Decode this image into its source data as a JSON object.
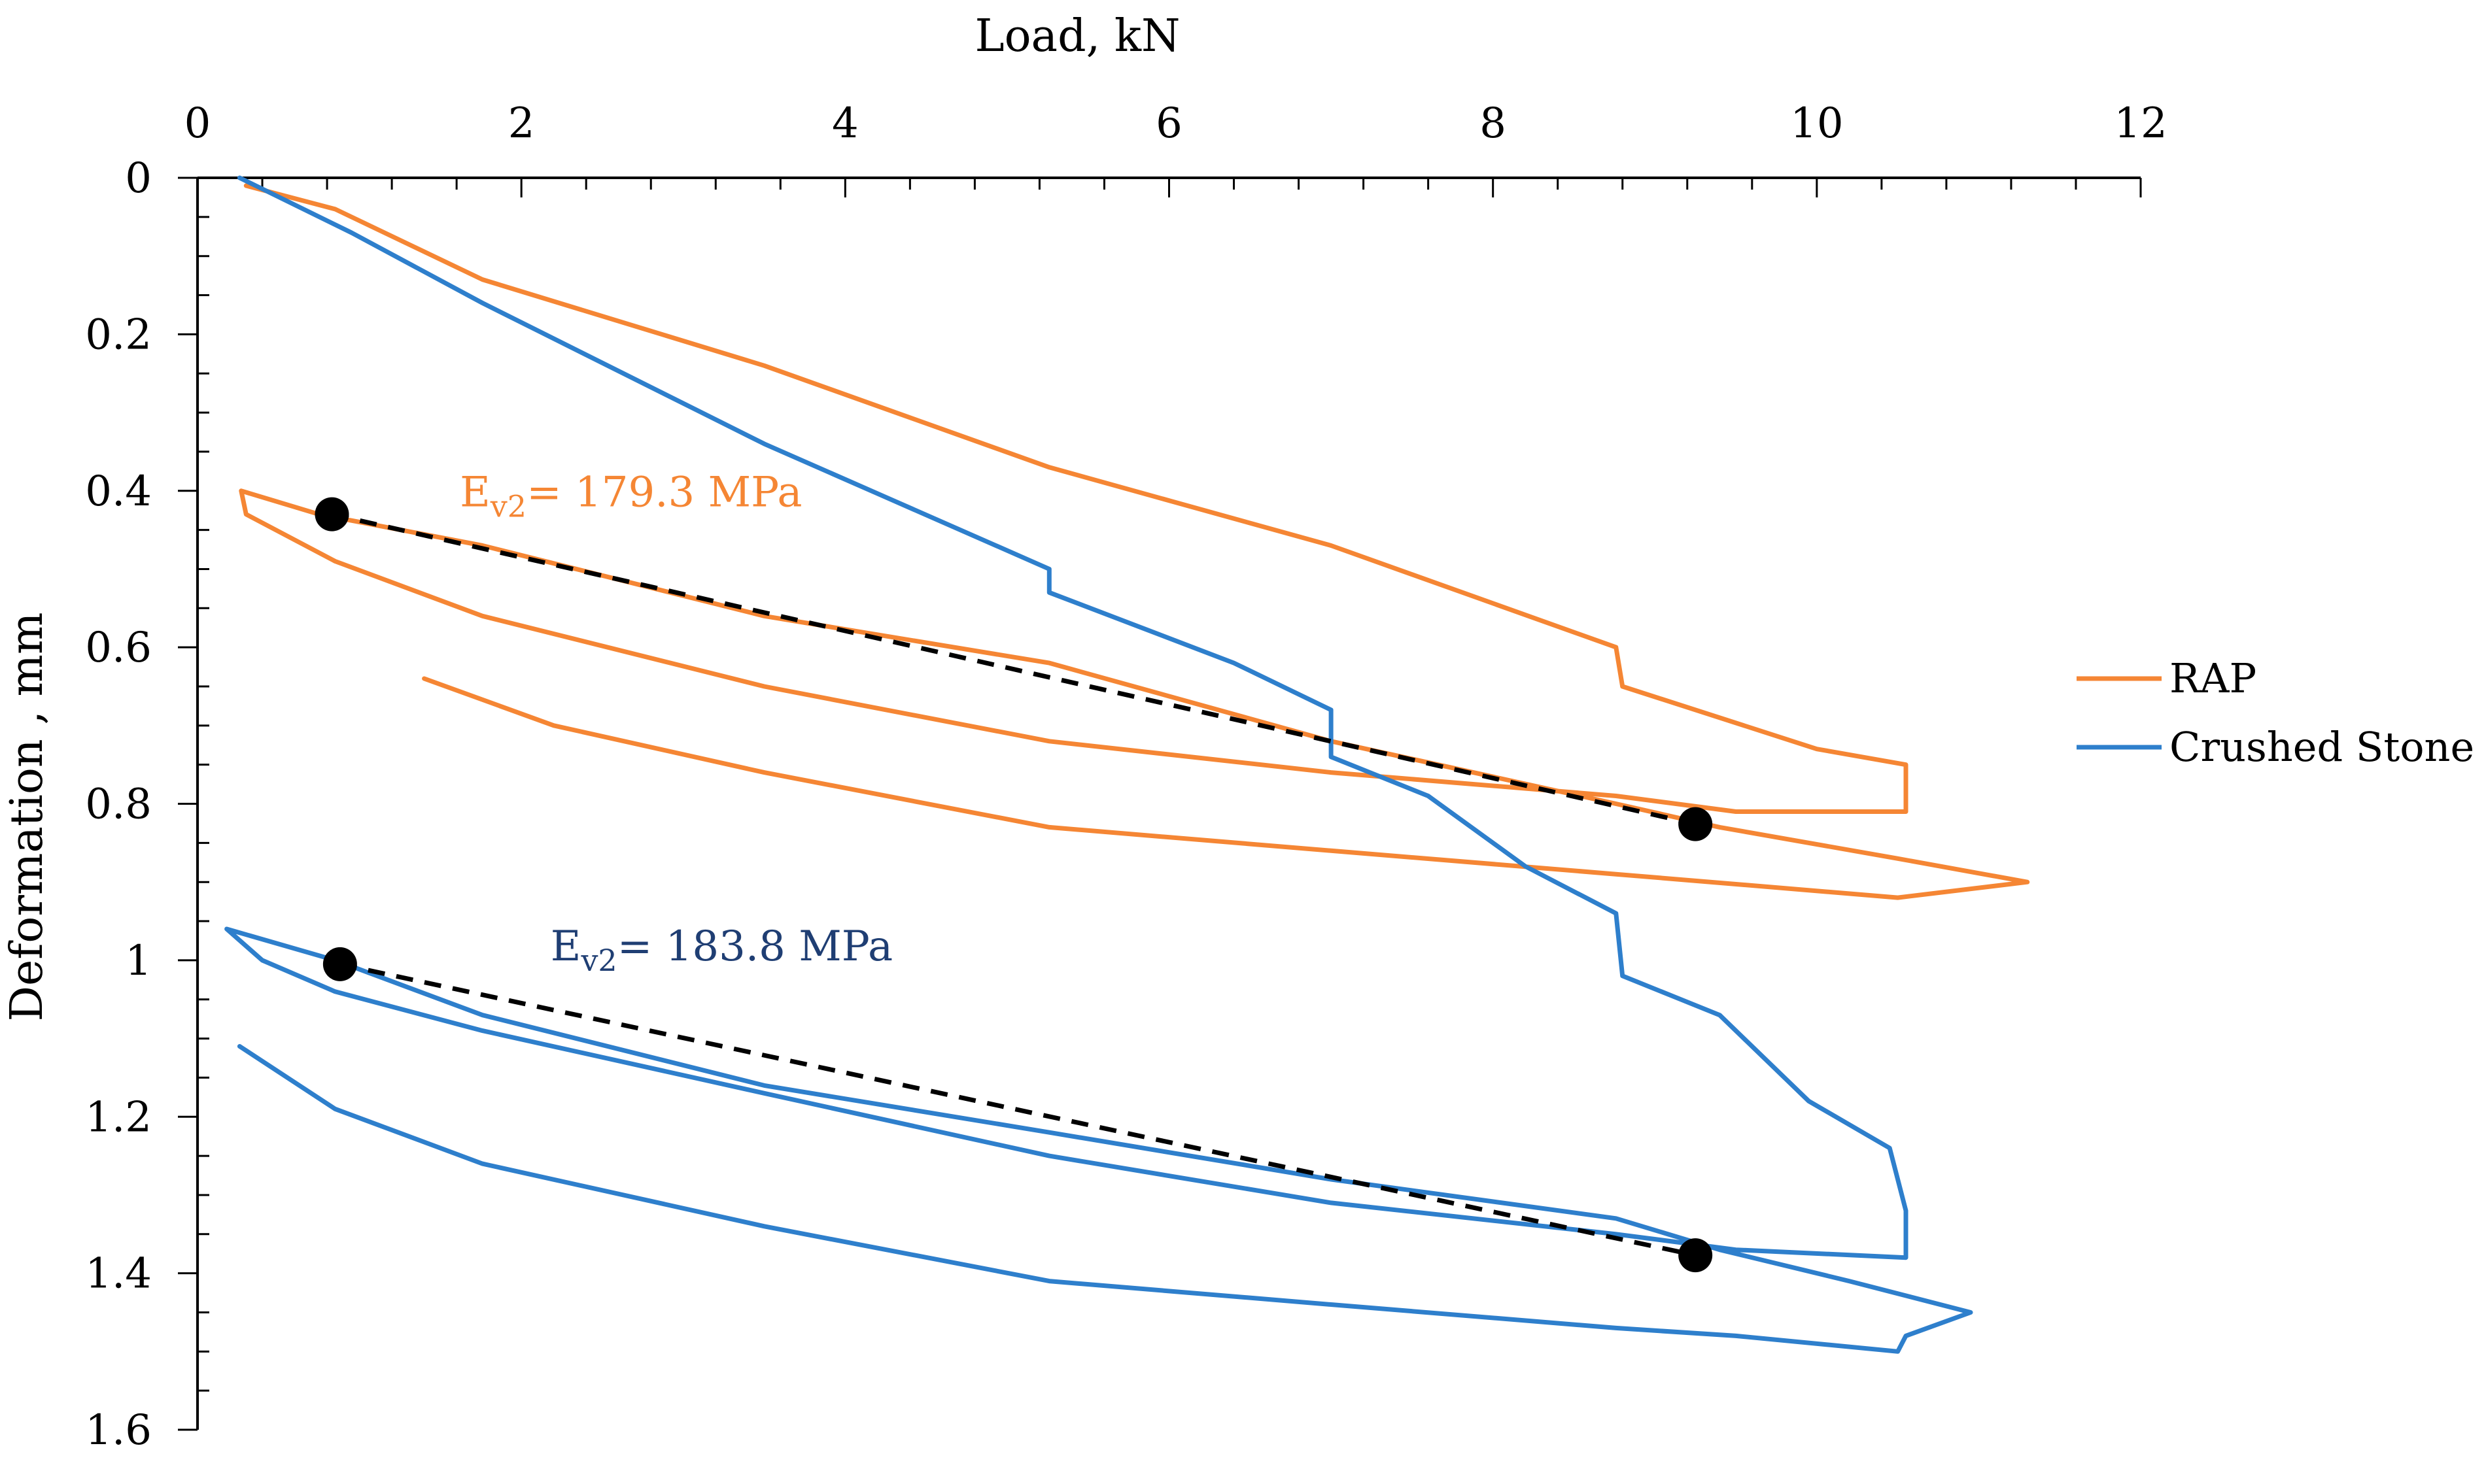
{
  "chart_data": {
    "type": "line",
    "title": "",
    "xlabel": "Load, kN",
    "ylabel": "Deformation , mm",
    "x_axis_position": "top",
    "y_axis_inverted": true,
    "xlim": [
      0,
      12
    ],
    "ylim": [
      0,
      1.6
    ],
    "x_ticks": [
      "0",
      "2",
      "4",
      "6",
      "8",
      "10",
      "12"
    ],
    "y_ticks": [
      "0",
      "0.2",
      "0.4",
      "0.6",
      "0.8",
      "1",
      "1.2",
      "1.4",
      "1.6"
    ],
    "x_tick_values": [
      0,
      2,
      4,
      6,
      8,
      10,
      12
    ],
    "y_tick_values": [
      0,
      0.2,
      0.4,
      0.6,
      0.8,
      1.0,
      1.2,
      1.4,
      1.6
    ],
    "grid": false,
    "legend_position": "right",
    "series": [
      {
        "name": "RAP",
        "color": "#F58634",
        "points": [
          [
            0.3,
            0.01
          ],
          [
            0.85,
            0.04
          ],
          [
            1.76,
            0.13
          ],
          [
            3.5,
            0.24
          ],
          [
            5.26,
            0.37
          ],
          [
            7.0,
            0.47
          ],
          [
            8.76,
            0.6
          ],
          [
            8.8,
            0.65
          ],
          [
            10.0,
            0.73
          ],
          [
            10.55,
            0.75
          ],
          [
            10.55,
            0.81
          ],
          [
            9.5,
            0.81
          ],
          [
            8.76,
            0.79
          ],
          [
            7.0,
            0.76
          ],
          [
            5.26,
            0.72
          ],
          [
            3.5,
            0.65
          ],
          [
            1.76,
            0.56
          ],
          [
            0.85,
            0.49
          ],
          [
            0.3,
            0.43
          ],
          [
            0.27,
            0.4
          ],
          [
            0.75,
            0.43
          ],
          [
            1.76,
            0.47
          ],
          [
            3.5,
            0.56
          ],
          [
            5.26,
            0.62
          ],
          [
            7.0,
            0.72
          ],
          [
            8.76,
            0.8
          ],
          [
            9.4,
            0.83
          ],
          [
            10.5,
            0.87
          ],
          [
            11.3,
            0.9
          ],
          [
            10.5,
            0.92
          ],
          [
            8.76,
            0.89
          ],
          [
            7.0,
            0.86
          ],
          [
            5.26,
            0.83
          ],
          [
            3.5,
            0.76
          ],
          [
            2.2,
            0.7
          ],
          [
            1.4,
            0.64
          ]
        ]
      },
      {
        "name": "Crushed Stone",
        "color": "#2E7FCC",
        "points": [
          [
            0.26,
            0.0
          ],
          [
            0.95,
            0.07
          ],
          [
            1.76,
            0.16
          ],
          [
            3.5,
            0.34
          ],
          [
            5.26,
            0.5
          ],
          [
            5.26,
            0.53
          ],
          [
            6.4,
            0.62
          ],
          [
            7.0,
            0.68
          ],
          [
            7.0,
            0.74
          ],
          [
            7.6,
            0.79
          ],
          [
            8.2,
            0.88
          ],
          [
            8.76,
            0.94
          ],
          [
            8.8,
            1.02
          ],
          [
            9.4,
            1.07
          ],
          [
            9.95,
            1.18
          ],
          [
            10.45,
            1.24
          ],
          [
            10.55,
            1.32
          ],
          [
            10.55,
            1.38
          ],
          [
            9.5,
            1.37
          ],
          [
            8.76,
            1.35
          ],
          [
            7.0,
            1.31
          ],
          [
            5.26,
            1.25
          ],
          [
            3.5,
            1.17
          ],
          [
            1.76,
            1.09
          ],
          [
            0.85,
            1.04
          ],
          [
            0.4,
            1.0
          ],
          [
            0.18,
            0.96
          ],
          [
            0.85,
            1.0
          ],
          [
            1.76,
            1.07
          ],
          [
            3.5,
            1.16
          ],
          [
            5.26,
            1.22
          ],
          [
            7.0,
            1.28
          ],
          [
            8.76,
            1.33
          ],
          [
            9.4,
            1.37
          ],
          [
            10.2,
            1.41
          ],
          [
            10.95,
            1.45
          ],
          [
            10.55,
            1.48
          ],
          [
            10.5,
            1.5
          ],
          [
            9.5,
            1.48
          ],
          [
            8.76,
            1.47
          ],
          [
            7.0,
            1.44
          ],
          [
            5.26,
            1.41
          ],
          [
            3.5,
            1.34
          ],
          [
            1.76,
            1.26
          ],
          [
            0.85,
            1.19
          ],
          [
            0.26,
            1.11
          ]
        ]
      }
    ],
    "fit_lines": [
      {
        "name": "RAP Ev2 secant",
        "color": "#000000",
        "style": "dashed",
        "points": [
          [
            0.83,
            0.43
          ],
          [
            9.25,
            0.826
          ]
        ],
        "label_main": "E",
        "label_sub": "v2",
        "label_rest": "= 179.3 MPa",
        "label_color": "#F58634",
        "label_at": [
          1.62,
          0.42
        ]
      },
      {
        "name": "Crushed Stone Ev2 secant",
        "color": "#000000",
        "style": "dashed",
        "points": [
          [
            0.88,
            1.005
          ],
          [
            9.25,
            1.377
          ]
        ],
        "label_main": "E",
        "label_sub": "v2",
        "label_rest": "= 183.8 MPa",
        "label_color": "#1F3E73",
        "label_at": [
          2.18,
          1.0
        ]
      }
    ]
  }
}
